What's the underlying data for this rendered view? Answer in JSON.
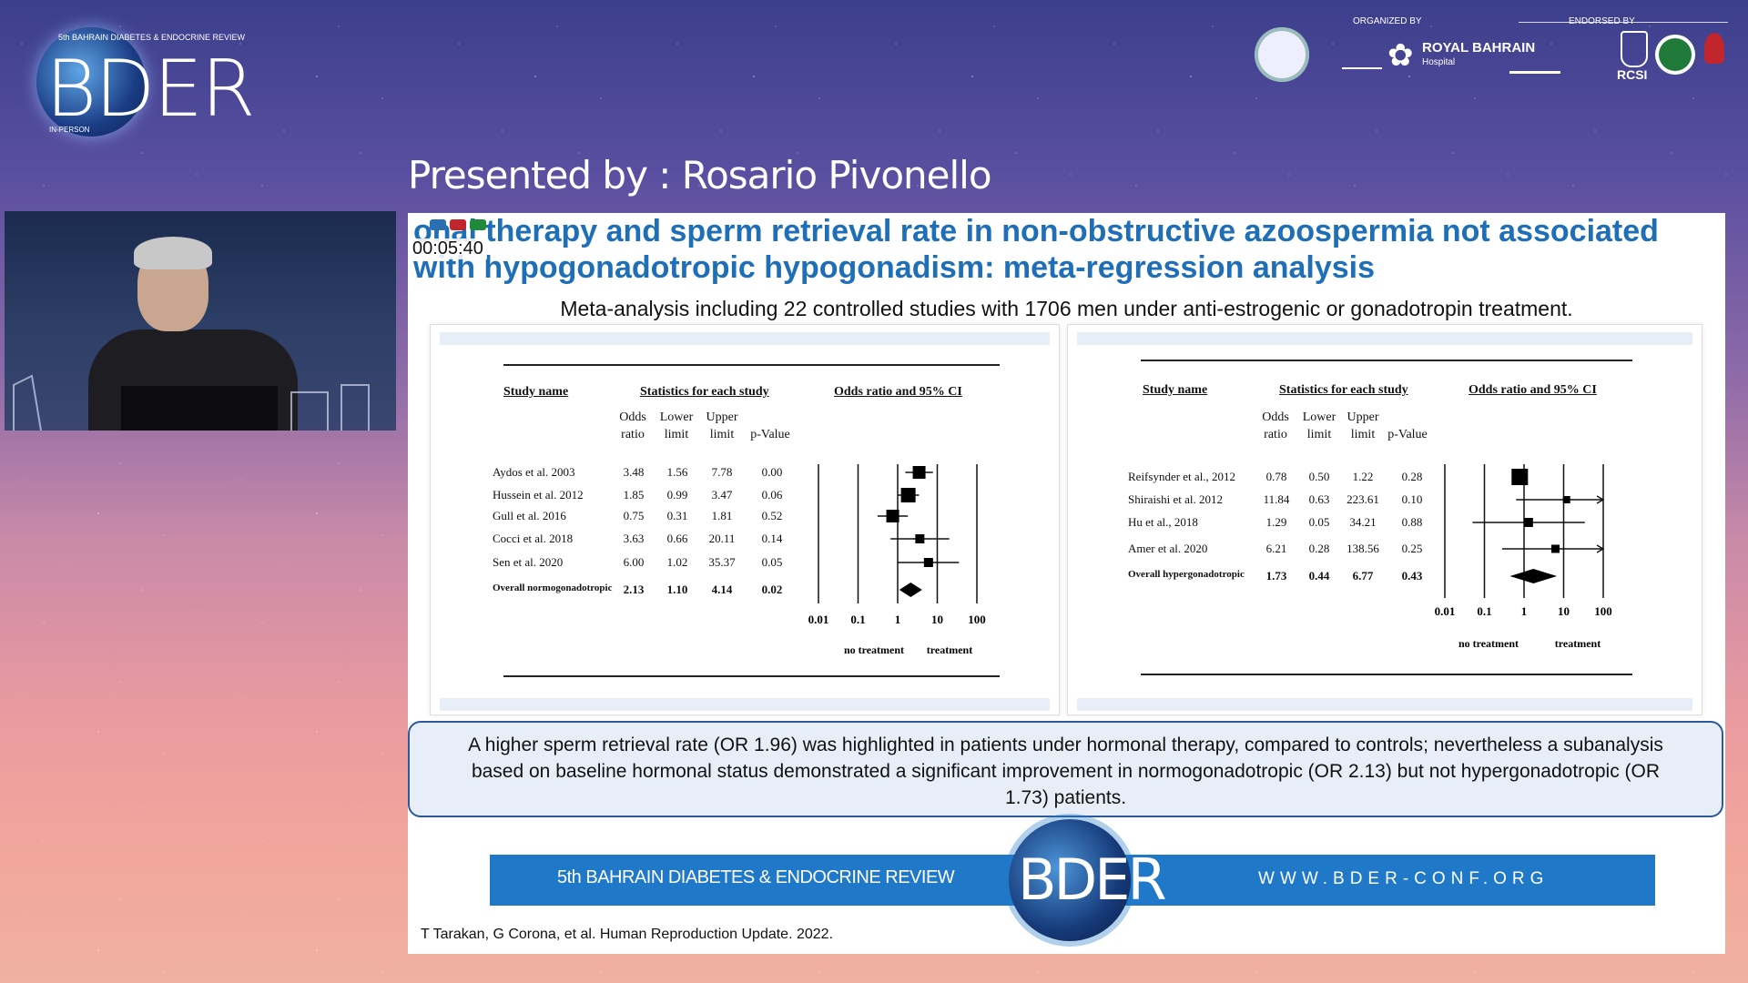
{
  "event": {
    "logo_text": "BDER",
    "edition": "5th BAHRAIN DIABETES & ENDOCRINE REVIEW",
    "format": "IN-PERSON",
    "organized_by_label": "ORGANIZED BY",
    "endorsed_by_label": "ENDORSED BY",
    "organizer_name": "ROYAL BAHRAIN",
    "organizer_sub": "Hospital",
    "endorser_rcsi": "RCSI"
  },
  "presenter_label": "Presented by : Rosario Pivonello",
  "video": {
    "timer": "00:05:40"
  },
  "slide": {
    "title": "Hormonal therapy and sperm retrieval rate in non-obstructive azoospermia not associated with hypogonadotropic hypogonadism: meta-regression analysis",
    "title_visible": "onal therapy and sperm retrieval rate in non-obstructive azoospermia not associated with hypogonadotropic hypogonadism: meta-regression analysis",
    "subtitle": "Meta-analysis including 22 controlled studies with 1706 men under anti-estrogenic or gonadotropin treatment.",
    "conclusion": "A higher sperm retrieval rate (OR 1.96) was highlighted in patients under hormonal therapy, compared to controls; nevertheless a subanalysis based on baseline hormonal status demonstrated a significant improvement in normogonadotropic (OR 2.13) but not hypergonadotropic (OR 1.73) patients.",
    "banner_left": "5th BAHRAIN DIABETES & ENDOCRINE REVIEW",
    "banner_right": "WWW.BDER-CONF.ORG",
    "citation": "T Tarakan, G Corona, et al. Human Reproduction Update. 2022."
  },
  "forest_left": {
    "headers": {
      "study": "Study name",
      "stats": "Statistics for each study",
      "plot": "Odds ratio and 95% CI"
    },
    "columns": [
      "Odds ratio",
      "Lower limit",
      "Upper limit",
      "p-Value"
    ],
    "rows": [
      {
        "study": "Aydos et al. 2003",
        "or": "3.48",
        "lower": "1.56",
        "upper": "7.78",
        "p": "0.00"
      },
      {
        "study": "Hussein et al. 2012",
        "or": "1.85",
        "lower": "0.99",
        "upper": "3.47",
        "p": "0.06"
      },
      {
        "study": "Gull et al. 2016",
        "or": "0.75",
        "lower": "0.31",
        "upper": "1.81",
        "p": "0.52"
      },
      {
        "study": "Cocci et al. 2018",
        "or": "3.63",
        "lower": "0.66",
        "upper": "20.11",
        "p": "0.14"
      },
      {
        "study": "Sen et al. 2020",
        "or": "6.00",
        "lower": "1.02",
        "upper": "35.37",
        "p": "0.05"
      }
    ],
    "overall": {
      "study": "Overall normogonadotropic",
      "or": "2.13",
      "lower": "1.10",
      "upper": "4.14",
      "p": "0.02"
    },
    "axis_ticks": [
      "0.01",
      "0.1",
      "1",
      "10",
      "100"
    ],
    "axis_left_label": "no treatment",
    "axis_right_label": "treatment"
  },
  "forest_right": {
    "headers": {
      "study": "Study name",
      "stats": "Statistics for each study",
      "plot": "Odds ratio and 95% CI"
    },
    "columns": [
      "Odds ratio",
      "Lower limit",
      "Upper limit",
      "p-Value"
    ],
    "rows": [
      {
        "study": "Reifsynder et al., 2012",
        "or": "0.78",
        "lower": "0.50",
        "upper": "1.22",
        "p": "0.28"
      },
      {
        "study": "Shiraishi et al. 2012",
        "or": "11.84",
        "lower": "0.63",
        "upper": "223.61",
        "p": "0.10"
      },
      {
        "study": "Hu et al., 2018",
        "or": "1.29",
        "lower": "0.05",
        "upper": "34.21",
        "p": "0.88"
      },
      {
        "study": "Amer et al. 2020",
        "or": "6.21",
        "lower": "0.28",
        "upper": "138.56",
        "p": "0.25"
      }
    ],
    "overall": {
      "study": "Overall hypergonadotropic",
      "or": "1.73",
      "lower": "0.44",
      "upper": "6.77",
      "p": "0.43"
    },
    "axis_ticks": [
      "0.01",
      "0.1",
      "1",
      "10",
      "100"
    ],
    "axis_left_label": "no treatment",
    "axis_right_label": "treatment"
  },
  "chart_data": [
    {
      "type": "forest",
      "scale": "log",
      "xlim": [
        0.01,
        100
      ],
      "x_ticks": [
        0.01,
        0.1,
        1,
        10,
        100
      ],
      "studies": [
        "Aydos et al. 2003",
        "Hussein et al. 2012",
        "Gull et al. 2016",
        "Cocci et al. 2018",
        "Sen et al. 2020",
        "Overall normogonadotropic"
      ],
      "odds_ratio": [
        3.48,
        1.85,
        0.75,
        3.63,
        6.0,
        2.13
      ],
      "lower": [
        1.56,
        0.99,
        0.31,
        0.66,
        1.02,
        1.1
      ],
      "upper": [
        7.78,
        3.47,
        1.81,
        20.11,
        35.37,
        4.14
      ],
      "p_value": [
        0.0,
        0.06,
        0.52,
        0.14,
        0.05,
        0.02
      ]
    },
    {
      "type": "forest",
      "scale": "log",
      "xlim": [
        0.01,
        100
      ],
      "x_ticks": [
        0.01,
        0.1,
        1,
        10,
        100
      ],
      "studies": [
        "Reifsynder et al., 2012",
        "Shiraishi et al. 2012",
        "Hu et al., 2018",
        "Amer et al. 2020",
        "Overall hypergonadotropic"
      ],
      "odds_ratio": [
        0.78,
        11.84,
        1.29,
        6.21,
        1.73
      ],
      "lower": [
        0.5,
        0.63,
        0.05,
        0.28,
        0.44
      ],
      "upper": [
        1.22,
        223.61,
        34.21,
        138.56,
        6.77
      ],
      "p_value": [
        0.28,
        0.1,
        0.88,
        0.25,
        0.43
      ]
    }
  ]
}
